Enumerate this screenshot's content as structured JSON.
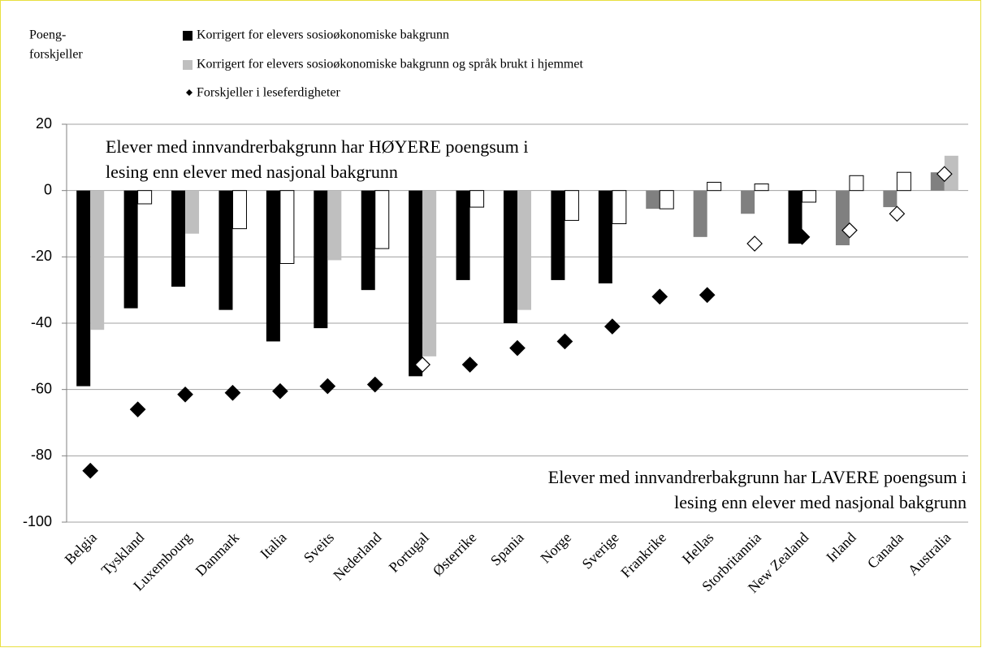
{
  "chart_data": {
    "type": "bar",
    "y_label": [
      "Poeng-",
      "forskjeller"
    ],
    "annotations": [
      {
        "lines": [
          "Elever med innvandrerbakgrunn har HØYERE poengsum i",
          "lesing enn elever med nasjonal bakgrunn"
        ]
      },
      {
        "lines": [
          "Elever med innvandrerbakgrunn har LAVERE poengsum i",
          "lesing enn elever med nasjonal bakgrunn"
        ]
      }
    ],
    "categories": [
      "Belgia",
      "Tyskland",
      "Luxembourg",
      "Danmark",
      "Italia",
      "Sveits",
      "Nederland",
      "Portugal",
      "Østerrike",
      "Spania",
      "Norge",
      "Sverige",
      "Frankrike",
      "Hellas",
      "Storbritannia",
      "New Zealand",
      "Irland",
      "Canada",
      "Australia"
    ],
    "series": [
      {
        "name": "Korrigert for elevers sosioøkonomiske bakgrunn",
        "color": "#000000",
        "mark": "bar",
        "values": [
          -59,
          -35.5,
          -29,
          -36,
          -45.5,
          -41.5,
          -30,
          -56,
          -27,
          -40,
          -27,
          -28,
          -5.5,
          -14,
          -7,
          -16,
          -16.5,
          -5,
          5.5
        ],
        "colors": [
          "#000000",
          "#000000",
          "#000000",
          "#000000",
          "#000000",
          "#000000",
          "#000000",
          "#000000",
          "#000000",
          "#000000",
          "#000000",
          "#000000",
          "#808080",
          "#808080",
          "#808080",
          "#000000",
          "#808080",
          "#808080",
          "#808080"
        ]
      },
      {
        "name": "Korrigert for elevers sosioøkonomiske bakgrunn og språk brukt i hjemmet",
        "color": "#bfbfbf",
        "mark": "bar",
        "values": [
          -42,
          -4,
          -13,
          -11.5,
          -22,
          -21,
          -17.5,
          -50,
          -5,
          -36,
          -9,
          -10,
          -5.5,
          2.5,
          2,
          -3.5,
          4.5,
          5.5,
          10.5
        ],
        "colors": [
          "#bfbfbf",
          "#ffffff",
          "#bfbfbf",
          "#ffffff",
          "#ffffff",
          "#bfbfbf",
          "#ffffff",
          "#bfbfbf",
          "#ffffff",
          "#bfbfbf",
          "#ffffff",
          "#ffffff",
          "#ffffff",
          "#ffffff",
          "#ffffff",
          "#ffffff",
          "#ffffff",
          "#ffffff",
          "#bfbfbf"
        ]
      },
      {
        "name": "Forskjeller i leseferdigheter",
        "color": "#000000",
        "mark": "diamond",
        "values": [
          -84.5,
          -66,
          -61.5,
          -61,
          -60.5,
          -59,
          -58.5,
          -52.5,
          -52.5,
          -47.5,
          -45.5,
          -41,
          -32,
          -31.5,
          -16,
          -14,
          -12,
          -7,
          5
        ],
        "colors": [
          "#000000",
          "#000000",
          "#000000",
          "#000000",
          "#000000",
          "#000000",
          "#000000",
          "#ffffff",
          "#000000",
          "#000000",
          "#000000",
          "#000000",
          "#000000",
          "#000000",
          "#ffffff",
          "#000000",
          "#ffffff",
          "#ffffff",
          "#ffffff"
        ]
      }
    ],
    "ylim": [
      -100,
      20
    ],
    "yticks": [
      20,
      0,
      -20,
      -40,
      -60,
      -80,
      -100
    ],
    "grid": true
  }
}
